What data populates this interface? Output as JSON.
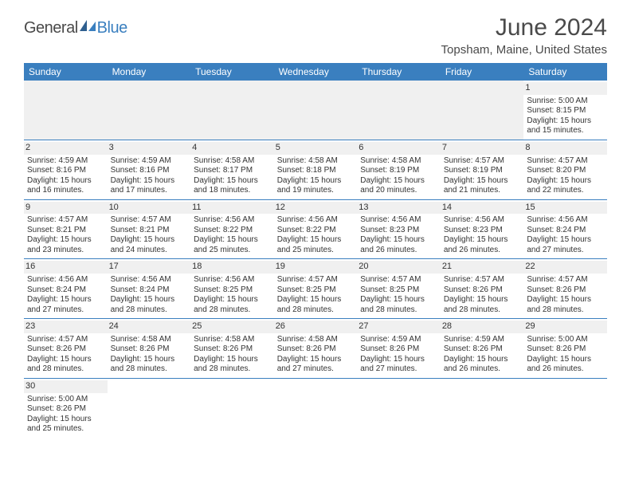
{
  "logo": {
    "part1": "General",
    "part2": "Blue"
  },
  "title": "June 2024",
  "location": "Topsham, Maine, United States",
  "colors": {
    "header_bg": "#3a7fbf",
    "header_text": "#ffffff",
    "daynum_bg": "#f0f0f0",
    "row_border": "#3a7fbf",
    "text": "#333333",
    "title_text": "#4a4a4a"
  },
  "weekdays": [
    "Sunday",
    "Monday",
    "Tuesday",
    "Wednesday",
    "Thursday",
    "Friday",
    "Saturday"
  ],
  "weeks": [
    [
      null,
      null,
      null,
      null,
      null,
      null,
      {
        "n": "1",
        "sr": "Sunrise: 5:00 AM",
        "ss": "Sunset: 8:15 PM",
        "d1": "Daylight: 15 hours",
        "d2": "and 15 minutes."
      }
    ],
    [
      {
        "n": "2",
        "sr": "Sunrise: 4:59 AM",
        "ss": "Sunset: 8:16 PM",
        "d1": "Daylight: 15 hours",
        "d2": "and 16 minutes."
      },
      {
        "n": "3",
        "sr": "Sunrise: 4:59 AM",
        "ss": "Sunset: 8:16 PM",
        "d1": "Daylight: 15 hours",
        "d2": "and 17 minutes."
      },
      {
        "n": "4",
        "sr": "Sunrise: 4:58 AM",
        "ss": "Sunset: 8:17 PM",
        "d1": "Daylight: 15 hours",
        "d2": "and 18 minutes."
      },
      {
        "n": "5",
        "sr": "Sunrise: 4:58 AM",
        "ss": "Sunset: 8:18 PM",
        "d1": "Daylight: 15 hours",
        "d2": "and 19 minutes."
      },
      {
        "n": "6",
        "sr": "Sunrise: 4:58 AM",
        "ss": "Sunset: 8:19 PM",
        "d1": "Daylight: 15 hours",
        "d2": "and 20 minutes."
      },
      {
        "n": "7",
        "sr": "Sunrise: 4:57 AM",
        "ss": "Sunset: 8:19 PM",
        "d1": "Daylight: 15 hours",
        "d2": "and 21 minutes."
      },
      {
        "n": "8",
        "sr": "Sunrise: 4:57 AM",
        "ss": "Sunset: 8:20 PM",
        "d1": "Daylight: 15 hours",
        "d2": "and 22 minutes."
      }
    ],
    [
      {
        "n": "9",
        "sr": "Sunrise: 4:57 AM",
        "ss": "Sunset: 8:21 PM",
        "d1": "Daylight: 15 hours",
        "d2": "and 23 minutes."
      },
      {
        "n": "10",
        "sr": "Sunrise: 4:57 AM",
        "ss": "Sunset: 8:21 PM",
        "d1": "Daylight: 15 hours",
        "d2": "and 24 minutes."
      },
      {
        "n": "11",
        "sr": "Sunrise: 4:56 AM",
        "ss": "Sunset: 8:22 PM",
        "d1": "Daylight: 15 hours",
        "d2": "and 25 minutes."
      },
      {
        "n": "12",
        "sr": "Sunrise: 4:56 AM",
        "ss": "Sunset: 8:22 PM",
        "d1": "Daylight: 15 hours",
        "d2": "and 25 minutes."
      },
      {
        "n": "13",
        "sr": "Sunrise: 4:56 AM",
        "ss": "Sunset: 8:23 PM",
        "d1": "Daylight: 15 hours",
        "d2": "and 26 minutes."
      },
      {
        "n": "14",
        "sr": "Sunrise: 4:56 AM",
        "ss": "Sunset: 8:23 PM",
        "d1": "Daylight: 15 hours",
        "d2": "and 26 minutes."
      },
      {
        "n": "15",
        "sr": "Sunrise: 4:56 AM",
        "ss": "Sunset: 8:24 PM",
        "d1": "Daylight: 15 hours",
        "d2": "and 27 minutes."
      }
    ],
    [
      {
        "n": "16",
        "sr": "Sunrise: 4:56 AM",
        "ss": "Sunset: 8:24 PM",
        "d1": "Daylight: 15 hours",
        "d2": "and 27 minutes."
      },
      {
        "n": "17",
        "sr": "Sunrise: 4:56 AM",
        "ss": "Sunset: 8:24 PM",
        "d1": "Daylight: 15 hours",
        "d2": "and 28 minutes."
      },
      {
        "n": "18",
        "sr": "Sunrise: 4:56 AM",
        "ss": "Sunset: 8:25 PM",
        "d1": "Daylight: 15 hours",
        "d2": "and 28 minutes."
      },
      {
        "n": "19",
        "sr": "Sunrise: 4:57 AM",
        "ss": "Sunset: 8:25 PM",
        "d1": "Daylight: 15 hours",
        "d2": "and 28 minutes."
      },
      {
        "n": "20",
        "sr": "Sunrise: 4:57 AM",
        "ss": "Sunset: 8:25 PM",
        "d1": "Daylight: 15 hours",
        "d2": "and 28 minutes."
      },
      {
        "n": "21",
        "sr": "Sunrise: 4:57 AM",
        "ss": "Sunset: 8:26 PM",
        "d1": "Daylight: 15 hours",
        "d2": "and 28 minutes."
      },
      {
        "n": "22",
        "sr": "Sunrise: 4:57 AM",
        "ss": "Sunset: 8:26 PM",
        "d1": "Daylight: 15 hours",
        "d2": "and 28 minutes."
      }
    ],
    [
      {
        "n": "23",
        "sr": "Sunrise: 4:57 AM",
        "ss": "Sunset: 8:26 PM",
        "d1": "Daylight: 15 hours",
        "d2": "and 28 minutes."
      },
      {
        "n": "24",
        "sr": "Sunrise: 4:58 AM",
        "ss": "Sunset: 8:26 PM",
        "d1": "Daylight: 15 hours",
        "d2": "and 28 minutes."
      },
      {
        "n": "25",
        "sr": "Sunrise: 4:58 AM",
        "ss": "Sunset: 8:26 PM",
        "d1": "Daylight: 15 hours",
        "d2": "and 28 minutes."
      },
      {
        "n": "26",
        "sr": "Sunrise: 4:58 AM",
        "ss": "Sunset: 8:26 PM",
        "d1": "Daylight: 15 hours",
        "d2": "and 27 minutes."
      },
      {
        "n": "27",
        "sr": "Sunrise: 4:59 AM",
        "ss": "Sunset: 8:26 PM",
        "d1": "Daylight: 15 hours",
        "d2": "and 27 minutes."
      },
      {
        "n": "28",
        "sr": "Sunrise: 4:59 AM",
        "ss": "Sunset: 8:26 PM",
        "d1": "Daylight: 15 hours",
        "d2": "and 26 minutes."
      },
      {
        "n": "29",
        "sr": "Sunrise: 5:00 AM",
        "ss": "Sunset: 8:26 PM",
        "d1": "Daylight: 15 hours",
        "d2": "and 26 minutes."
      }
    ],
    [
      {
        "n": "30",
        "sr": "Sunrise: 5:00 AM",
        "ss": "Sunset: 8:26 PM",
        "d1": "Daylight: 15 hours",
        "d2": "and 25 minutes."
      },
      null,
      null,
      null,
      null,
      null,
      null
    ]
  ]
}
